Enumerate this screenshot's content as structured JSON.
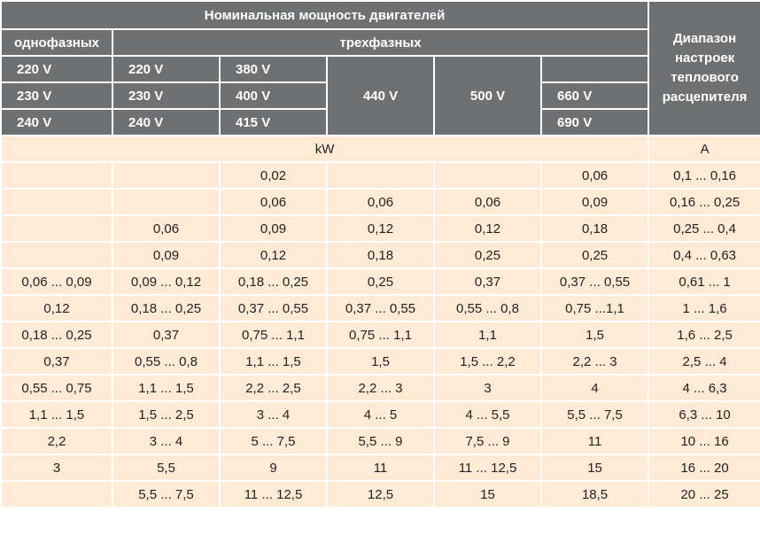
{
  "header": {
    "title": "Номинальная мощность двигателей",
    "single_phase": "однофазных",
    "three_phase": "трехфазных",
    "range_label": [
      "Диапазон",
      "настроек",
      "теплового",
      "расцепителя"
    ],
    "voltages": [
      [
        "220 V",
        "220 V",
        "380 V",
        "",
        "",
        ""
      ],
      [
        "230 V",
        "230 V",
        "400 V",
        "440 V",
        "500 V",
        "660 V"
      ],
      [
        "240 V",
        "240 V",
        "415 V",
        "",
        "",
        "690 V"
      ]
    ]
  },
  "units": {
    "power": "kW",
    "current": "A"
  },
  "rows": [
    [
      "",
      "",
      "0,02",
      "",
      "",
      "0,06",
      "0,1 ... 0,16"
    ],
    [
      "",
      "",
      "0,06",
      "0,06",
      "0,06",
      "0,09",
      "0,16 ... 0,25"
    ],
    [
      "",
      "0,06",
      "0,09",
      "0,12",
      "0,12",
      "0,18",
      "0,25 ... 0,4"
    ],
    [
      "",
      "0,09",
      "0,12",
      "0,18",
      "0,25",
      "0,25",
      "0,4 ... 0,63"
    ],
    [
      "0,06 ... 0,09",
      "0,09 ... 0,12",
      "0,18 ... 0,25",
      "0,25",
      "0,37",
      "0,37 ... 0,55",
      "0,61 ... 1"
    ],
    [
      "0,12",
      "0,18 ... 0,25",
      "0,37 ... 0,55",
      "0,37 ... 0,55",
      "0,55 ... 0,8",
      "0,75 ...1,1",
      "1 ... 1,6"
    ],
    [
      "0,18 ... 0,25",
      "0,37",
      "0,75 ... 1,1",
      "0,75 ... 1,1",
      "1,1",
      "1,5",
      "1,6 ... 2,5"
    ],
    [
      "0,37",
      "0,55 ... 0,8",
      "1,1 ... 1,5",
      "1,5",
      "1,5 ... 2,2",
      "2,2 ... 3",
      "2,5 ... 4"
    ],
    [
      "0,55 ... 0,75",
      "1,1 ... 1,5",
      "2,2 ... 2,5",
      "2,2 ... 3",
      "3",
      "4",
      "4 ... 6,3"
    ],
    [
      "1,1 ... 1,5",
      "1,5 ... 2,5",
      "3 ... 4",
      "4 ... 5",
      "4 ... 5,5",
      "5,5 ... 7,5",
      "6,3 ... 10"
    ],
    [
      "2,2",
      "3 ... 4",
      "5 ... 7,5",
      "5,5 ... 9",
      "7,5 ... 9",
      "11",
      "10 ... 16"
    ],
    [
      "3",
      "5,5",
      "9",
      "11",
      "11 ... 12,5",
      "15",
      "16 ... 20"
    ],
    [
      "",
      "5,5 ... 7,5",
      "11 ... 12,5",
      "12,5",
      "15",
      "18,5",
      "20 ... 25"
    ]
  ]
}
